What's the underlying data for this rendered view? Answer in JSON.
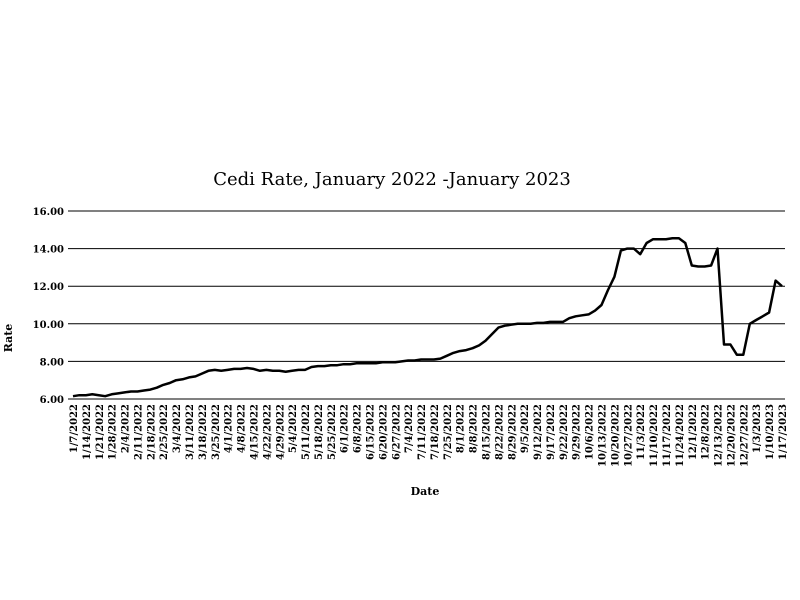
{
  "chart_data": {
    "type": "line",
    "title": "Cedi Rate, January 2022 -January 2023",
    "x_label": "Date",
    "y_label": "Rate",
    "categories": [
      "1/7/2022",
      null,
      "1/14/2022",
      null,
      "1/21/2022",
      null,
      "1/28/2022",
      null,
      "2/4/2022",
      null,
      "2/11/2022",
      null,
      "2/18/2022",
      null,
      "2/25/2022",
      null,
      "3/4/2022",
      null,
      "3/11/2022",
      null,
      "3/18/2022",
      null,
      "3/25/2022",
      null,
      "4/1/2022",
      null,
      "4/8/2022",
      null,
      "4/15/2022",
      null,
      "4/22/2022",
      null,
      "4/29/2022",
      null,
      "5/4/2022",
      null,
      "5/11/2022",
      null,
      "5/18/2022",
      null,
      "5/25/2022",
      null,
      "6/1/2022",
      null,
      "6/8/2022",
      null,
      "6/15/2022",
      null,
      "6/20/2022",
      null,
      "6/27/2022",
      null,
      "7/4/2022",
      null,
      "7/11/2022",
      null,
      "7/18/2022",
      null,
      "7/25/2022",
      null,
      "8/1/2022",
      null,
      "8/8/2022",
      null,
      "8/15/2022",
      null,
      "8/22/2022",
      null,
      "8/29/2022",
      null,
      "9/5/2022",
      null,
      "9/12/2022",
      null,
      "9/17/2022",
      null,
      "9/22/2022",
      null,
      "9/29/2022",
      null,
      "10/6/2022",
      null,
      "10/13/2022",
      null,
      "10/20/2022",
      null,
      "10/27/2022",
      null,
      "11/3/2022",
      null,
      "11/10/2022",
      null,
      "11/17/2022",
      null,
      "11/24/2022",
      null,
      "12/1/2022",
      null,
      "12/8/2022",
      null,
      "12/13/2022",
      null,
      "12/20/2022",
      null,
      "12/27/2022",
      null,
      "1/3/2023",
      null,
      "1/10/2023",
      null,
      "1/17/2023"
    ],
    "series": [
      {
        "name": "Rate",
        "color": "#000000",
        "values": [
          6.15,
          6.2,
          6.2,
          6.25,
          6.2,
          6.15,
          6.25,
          6.3,
          6.35,
          6.4,
          6.4,
          6.45,
          6.5,
          6.6,
          6.75,
          6.85,
          7.0,
          7.05,
          7.15,
          7.2,
          7.35,
          7.5,
          7.55,
          7.5,
          7.55,
          7.6,
          7.6,
          7.65,
          7.6,
          7.5,
          7.55,
          7.5,
          7.5,
          7.45,
          7.5,
          7.55,
          7.55,
          7.7,
          7.75,
          7.75,
          7.8,
          7.8,
          7.85,
          7.85,
          7.9,
          7.9,
          7.9,
          7.9,
          7.95,
          7.95,
          7.95,
          8.0,
          8.05,
          8.05,
          8.1,
          8.1,
          8.1,
          8.15,
          8.3,
          8.45,
          8.55,
          8.6,
          8.7,
          8.85,
          9.1,
          9.45,
          9.8,
          9.9,
          9.95,
          10.0,
          10.0,
          10.0,
          10.05,
          10.05,
          10.1,
          10.1,
          10.1,
          10.3,
          10.4,
          10.45,
          10.5,
          10.7,
          11.0,
          11.8,
          12.5,
          13.9,
          14.0,
          14.0,
          13.7,
          14.3,
          14.5,
          14.5,
          14.5,
          14.55,
          14.55,
          14.3,
          13.1,
          13.05,
          13.05,
          13.1,
          14.0,
          8.9,
          8.9,
          8.35,
          8.35,
          10.0,
          10.2,
          10.4,
          10.6,
          12.3,
          12.0
        ]
      }
    ],
    "ylim": [
      6,
      16
    ],
    "yticks": [
      {
        "value": 6,
        "label": "6.00"
      },
      {
        "value": 8,
        "label": "8.00"
      },
      {
        "value": 10,
        "label": "10.00"
      },
      {
        "value": 12,
        "label": "12.00"
      },
      {
        "value": 14,
        "label": "14.00"
      },
      {
        "value": 16,
        "label": "16.00"
      }
    ],
    "grid": true
  }
}
